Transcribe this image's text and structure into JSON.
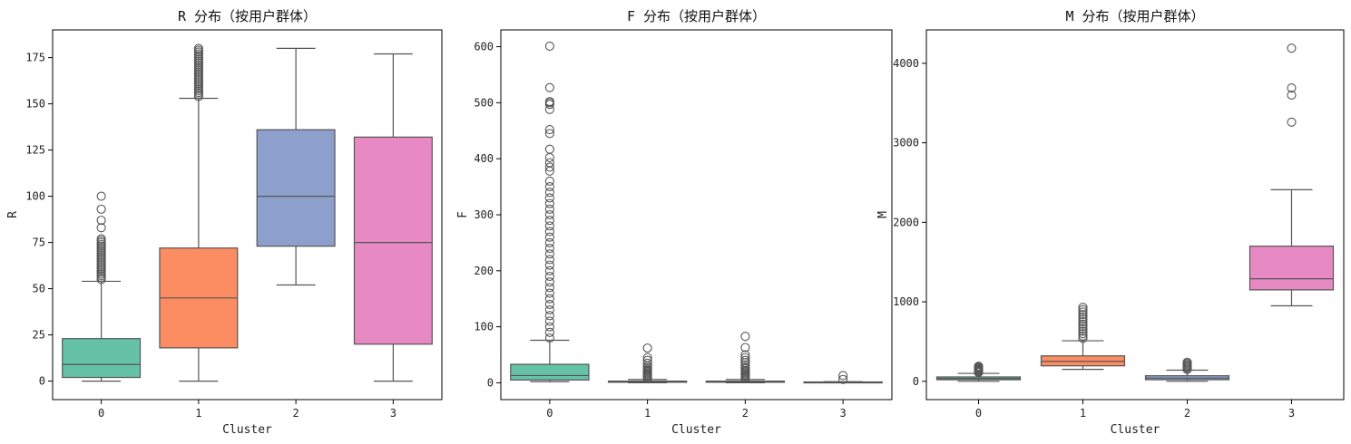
{
  "chart_data": [
    {
      "type": "box",
      "title": "R 分布（按用户群体）",
      "xlabel": "Cluster",
      "ylabel": "R",
      "categories": [
        "0",
        "1",
        "2",
        "3"
      ],
      "ylim": [
        -10,
        190
      ],
      "yticks": [
        0,
        25,
        50,
        75,
        100,
        125,
        150,
        175
      ],
      "boxes": [
        {
          "category": "0",
          "color": "#66c2a5",
          "whisker_low": 0,
          "q1": 2,
          "median": 9,
          "q3": 23,
          "whisker_high": 54,
          "outliers": [
            55,
            56,
            57,
            58,
            59,
            60,
            61,
            62,
            63,
            64,
            65,
            66,
            67,
            68,
            69,
            70,
            71,
            72,
            73,
            74,
            75,
            76,
            77,
            83,
            87,
            93,
            100
          ]
        },
        {
          "category": "1",
          "color": "#fc8d62",
          "whisker_low": 0,
          "q1": 18,
          "median": 45,
          "q3": 72,
          "whisker_high": 153,
          "outliers": [
            154,
            155,
            156,
            157,
            158,
            159,
            160,
            161,
            162,
            163,
            164,
            165,
            166,
            167,
            168,
            169,
            170,
            171,
            172,
            173,
            174,
            175,
            176,
            177,
            178,
            179,
            180
          ]
        },
        {
          "category": "2",
          "color": "#8da0cb",
          "whisker_low": 52,
          "q1": 73,
          "median": 100,
          "q3": 136,
          "whisker_high": 180,
          "outliers": []
        },
        {
          "category": "3",
          "color": "#e78ac3",
          "whisker_low": 0,
          "q1": 20,
          "median": 75,
          "q3": 132,
          "whisker_high": 177,
          "outliers": []
        }
      ]
    },
    {
      "type": "box",
      "title": "F 分布（按用户群体）",
      "xlabel": "Cluster",
      "ylabel": "F",
      "categories": [
        "0",
        "1",
        "2",
        "3"
      ],
      "ylim": [
        -30,
        630
      ],
      "yticks": [
        0,
        100,
        200,
        300,
        400,
        500,
        600
      ],
      "boxes": [
        {
          "category": "0",
          "color": "#66c2a5",
          "whisker_low": 2,
          "q1": 5,
          "median": 13,
          "q3": 33,
          "whisker_high": 76,
          "outliers": [
            80,
            90,
            100,
            110,
            120,
            130,
            140,
            150,
            160,
            170,
            180,
            190,
            200,
            210,
            220,
            230,
            240,
            250,
            260,
            270,
            280,
            290,
            300,
            310,
            320,
            330,
            340,
            350,
            360,
            378,
            385,
            393,
            402,
            417,
            445,
            452,
            488,
            497,
            500,
            502,
            527,
            601
          ]
        },
        {
          "category": "1",
          "color": "#fc8d62",
          "whisker_low": 0,
          "q1": 1,
          "median": 2,
          "q3": 3,
          "whisker_high": 6,
          "outliers": [
            8,
            10,
            12,
            14,
            16,
            18,
            20,
            22,
            24,
            27,
            30,
            35,
            40,
            45,
            62
          ]
        },
        {
          "category": "2",
          "color": "#8da0cb",
          "whisker_low": 0,
          "q1": 1,
          "median": 2,
          "q3": 3,
          "whisker_high": 6,
          "outliers": [
            8,
            10,
            12,
            14,
            16,
            18,
            20,
            22,
            25,
            28,
            32,
            36,
            40,
            45,
            50,
            63,
            83
          ]
        },
        {
          "category": "3",
          "color": "#e78ac3",
          "whisker_low": 0,
          "q1": 0.5,
          "median": 1,
          "q3": 1.5,
          "whisker_high": 2,
          "outliers": [
            6,
            13
          ]
        }
      ]
    },
    {
      "type": "box",
      "title": "M 分布（按用户群体）",
      "xlabel": "Cluster",
      "ylabel": "M",
      "categories": [
        "0",
        "1",
        "2",
        "3"
      ],
      "ylim": [
        -230,
        4420
      ],
      "yticks": [
        0,
        1000,
        2000,
        3000,
        4000
      ],
      "boxes": [
        {
          "category": "0",
          "color": "#66c2a5",
          "whisker_low": 0,
          "q1": 20,
          "median": 35,
          "q3": 55,
          "whisker_high": 100,
          "outliers": [
            110,
            120,
            130,
            140,
            150,
            160,
            170,
            180,
            190
          ]
        },
        {
          "category": "1",
          "color": "#fc8d62",
          "whisker_low": 150,
          "q1": 195,
          "median": 250,
          "q3": 320,
          "whisker_high": 510,
          "outliers": [
            540,
            570,
            600,
            630,
            660,
            690,
            720,
            750,
            780,
            810,
            840,
            870,
            900,
            930
          ]
        },
        {
          "category": "2",
          "color": "#8da0cb",
          "whisker_low": 0,
          "q1": 20,
          "median": 40,
          "q3": 70,
          "whisker_high": 140,
          "outliers": [
            150,
            165,
            180,
            195,
            210,
            225,
            240
          ]
        },
        {
          "category": "3",
          "color": "#e78ac3",
          "whisker_low": 950,
          "q1": 1150,
          "median": 1290,
          "q3": 1700,
          "whisker_high": 2410,
          "outliers": [
            3260,
            3600,
            3690,
            4190
          ]
        }
      ]
    }
  ]
}
